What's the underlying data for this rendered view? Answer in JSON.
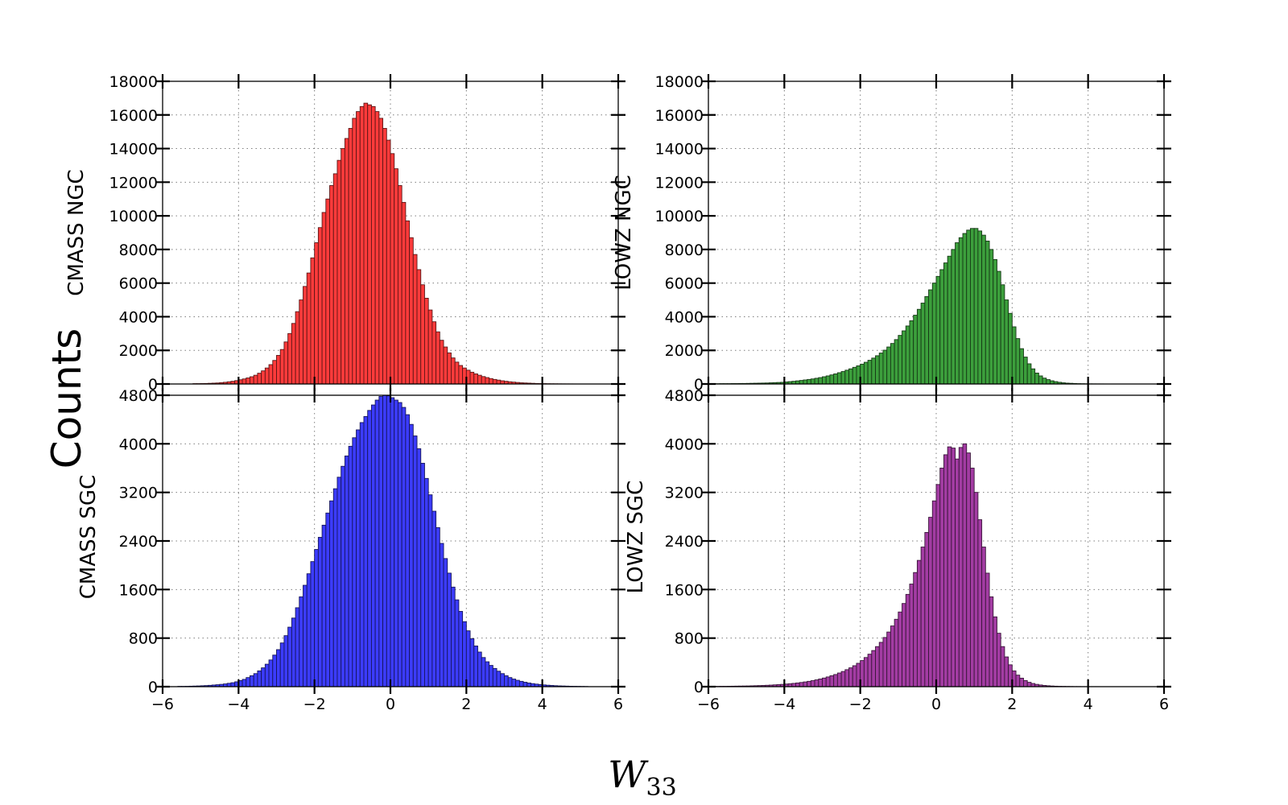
{
  "figure": {
    "ylabel": "Counts",
    "xlabel_main": "W",
    "xlabel_sub": "33"
  },
  "chart_data": [
    {
      "type": "bar",
      "panel": "top-left",
      "ylabel": "CMASS NGC",
      "color": "#ff3b3b",
      "xlim": [
        -6,
        6
      ],
      "ylim": [
        0,
        18000
      ],
      "xticks": [
        -6,
        -4,
        -2,
        0,
        2,
        4,
        6
      ],
      "yticks": [
        0,
        2000,
        4000,
        6000,
        8000,
        10000,
        12000,
        14000,
        16000,
        18000
      ],
      "show_xtick_labels": false,
      "grid": true,
      "bin_start": -5.2,
      "bin_width": 0.1,
      "values": [
        20,
        20,
        25,
        30,
        40,
        50,
        60,
        80,
        100,
        130,
        160,
        200,
        250,
        300,
        360,
        430,
        520,
        640,
        780,
        950,
        1150,
        1400,
        1700,
        2050,
        2500,
        3000,
        3600,
        4300,
        5000,
        5800,
        6600,
        7500,
        8400,
        9300,
        10200,
        11000,
        11800,
        12500,
        13300,
        14000,
        14600,
        15200,
        15800,
        16200,
        16500,
        16700,
        16600,
        16500,
        16200,
        15800,
        15200,
        14500,
        13700,
        12800,
        11800,
        10800,
        9700,
        8700,
        7700,
        6800,
        5900,
        5100,
        4400,
        3700,
        3100,
        2600,
        2200,
        1850,
        1550,
        1300,
        1100,
        950,
        820,
        700,
        600,
        520,
        440,
        380,
        320,
        270,
        230,
        190,
        160,
        130,
        110,
        90,
        70,
        60,
        50,
        40,
        30,
        25,
        20,
        15,
        12,
        10,
        8,
        6,
        5,
        4,
        3,
        2,
        2,
        1,
        1
      ]
    },
    {
      "type": "bar",
      "panel": "top-right",
      "ylabel": "LOWZ NGC",
      "color": "#3c9f3c",
      "xlim": [
        -6,
        6
      ],
      "ylim": [
        0,
        18000
      ],
      "xticks": [
        -6,
        -4,
        -2,
        0,
        2,
        4,
        6
      ],
      "yticks": [
        0,
        2000,
        4000,
        6000,
        8000,
        10000,
        12000,
        14000,
        16000,
        18000
      ],
      "show_xtick_labels": false,
      "grid": true,
      "bin_start": -6.0,
      "bin_width": 0.1,
      "values": [
        15,
        15,
        15,
        20,
        20,
        20,
        25,
        25,
        30,
        30,
        35,
        40,
        45,
        50,
        55,
        60,
        70,
        80,
        90,
        100,
        120,
        140,
        160,
        185,
        210,
        240,
        270,
        300,
        340,
        380,
        430,
        480,
        540,
        600,
        670,
        740,
        820,
        900,
        990,
        1080,
        1180,
        1290,
        1410,
        1540,
        1680,
        1840,
        2010,
        2200,
        2410,
        2640,
        2890,
        3160,
        3450,
        3760,
        4090,
        4440,
        4810,
        5200,
        5600,
        6000,
        6400,
        6800,
        7200,
        7600,
        8000,
        8400,
        8700,
        8950,
        9150,
        9250,
        9250,
        9100,
        8850,
        8500,
        8000,
        7400,
        6700,
        5900,
        5000,
        4200,
        3400,
        2700,
        2100,
        1600,
        1200,
        900,
        650,
        480,
        350,
        260,
        190,
        140,
        100,
        70,
        50,
        40,
        30,
        20,
        15,
        10,
        8,
        6,
        5,
        4,
        3,
        2,
        1
      ]
    },
    {
      "type": "bar",
      "panel": "bottom-left",
      "ylabel": "CMASS SGC",
      "color": "#3c3cff",
      "xlim": [
        -6,
        6
      ],
      "ylim": [
        0,
        4800
      ],
      "xticks": [
        -6,
        -4,
        -2,
        0,
        2,
        4,
        6
      ],
      "xtick_labels": [
        "−6",
        "−4",
        "−2",
        "0",
        "2",
        "4",
        "6"
      ],
      "yticks": [
        0,
        800,
        1600,
        2400,
        3200,
        4000,
        4800
      ],
      "show_xtick_labels": true,
      "grid": true,
      "bin_start": -5.6,
      "bin_width": 0.1,
      "values": [
        5,
        5,
        6,
        8,
        10,
        12,
        15,
        18,
        22,
        27,
        32,
        38,
        45,
        55,
        65,
        80,
        100,
        120,
        150,
        180,
        215,
        260,
        310,
        370,
        440,
        520,
        610,
        720,
        840,
        980,
        1130,
        1300,
        1480,
        1670,
        1860,
        2060,
        2260,
        2460,
        2660,
        2860,
        3060,
        3260,
        3450,
        3630,
        3800,
        3960,
        4100,
        4230,
        4350,
        4450,
        4550,
        4640,
        4720,
        4780,
        4810,
        4790,
        4760,
        4720,
        4680,
        4600,
        4480,
        4320,
        4130,
        3920,
        3680,
        3430,
        3160,
        2890,
        2620,
        2360,
        2110,
        1870,
        1640,
        1430,
        1240,
        1070,
        920,
        790,
        670,
        570,
        480,
        410,
        350,
        300,
        255,
        215,
        180,
        150,
        125,
        105,
        88,
        73,
        60,
        50,
        42,
        35,
        29,
        24,
        20,
        16,
        13,
        11,
        9,
        7,
        6,
        5,
        4,
        3
      ]
    },
    {
      "type": "bar",
      "panel": "bottom-right",
      "ylabel": "LOWZ SGC",
      "color": "#a33ca3",
      "xlim": [
        -6,
        6
      ],
      "ylim": [
        0,
        4800
      ],
      "xticks": [
        -6,
        -4,
        -2,
        0,
        2,
        4,
        6
      ],
      "xtick_labels": [
        "−6",
        "−4",
        "−2",
        "0",
        "2",
        "4",
        "6"
      ],
      "yticks": [
        0,
        800,
        1600,
        2400,
        3200,
        4000,
        4800
      ],
      "show_xtick_labels": true,
      "grid": true,
      "bin_start": -6.0,
      "bin_width": 0.1,
      "values": [
        5,
        5,
        5,
        6,
        6,
        7,
        8,
        9,
        10,
        11,
        12,
        14,
        16,
        18,
        20,
        23,
        26,
        30,
        34,
        38,
        43,
        48,
        54,
        61,
        69,
        78,
        88,
        99,
        112,
        126,
        142,
        160,
        180,
        200,
        225,
        250,
        280,
        310,
        345,
        385,
        430,
        480,
        535,
        595,
        660,
        730,
        810,
        900,
        1000,
        1110,
        1230,
        1370,
        1520,
        1690,
        1880,
        2080,
        2300,
        2540,
        2790,
        3060,
        3330,
        3600,
        3820,
        3950,
        3930,
        3750,
        3940,
        4000,
        3850,
        3600,
        3200,
        2750,
        2300,
        1870,
        1480,
        1150,
        880,
        660,
        490,
        360,
        260,
        190,
        140,
        100,
        72,
        52,
        38,
        28,
        20,
        15,
        11,
        8,
        6,
        5,
        4,
        3,
        2,
        2,
        1,
        1,
        1,
        1,
        1
      ]
    }
  ]
}
